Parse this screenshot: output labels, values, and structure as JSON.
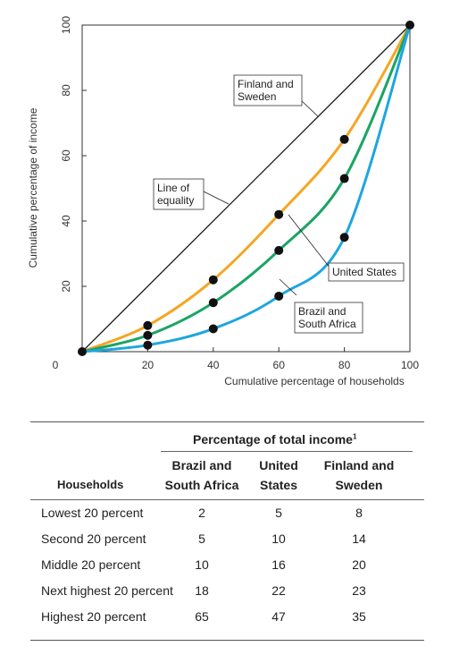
{
  "chart_data": {
    "type": "line",
    "xlabel": "Cumulative percentage of households",
    "ylabel": "Cumulative percentage of income",
    "xlim": [
      0,
      100
    ],
    "ylim": [
      0,
      100
    ],
    "xticks": [
      "0",
      "20",
      "40",
      "60",
      "80",
      "100"
    ],
    "yticks": [
      "20",
      "40",
      "60",
      "80",
      "100"
    ],
    "x": [
      0,
      20,
      40,
      60,
      80,
      100
    ],
    "series": [
      {
        "name": "Line of equality",
        "color": "#1a1a1a",
        "values": [
          0,
          20,
          40,
          60,
          80,
          100
        ]
      },
      {
        "name": "Finland and Sweden",
        "color": "#f5a623",
        "values": [
          0,
          8,
          22,
          42,
          65,
          100
        ]
      },
      {
        "name": "United States",
        "color": "#1aa564",
        "values": [
          0,
          5,
          15,
          31,
          53,
          100
        ]
      },
      {
        "name": "Brazil and South Africa",
        "color": "#1ea6e0",
        "values": [
          0,
          2,
          7,
          17,
          35,
          100
        ]
      }
    ],
    "annotations": {
      "equality": [
        "Line of",
        "equality"
      ],
      "finland": [
        "Finland and",
        "Sweden"
      ],
      "us": [
        "United States"
      ],
      "brazil": [
        "Brazil and",
        "South Africa"
      ]
    }
  },
  "table": {
    "group_header": "Percentage of total income",
    "footnote_mark": "1",
    "row_header": "Households",
    "columns": [
      [
        "Brazil and",
        "South Africa"
      ],
      [
        "United",
        "States"
      ],
      [
        "Finland and",
        "Sweden"
      ]
    ],
    "rows": [
      {
        "label": "Lowest 20 percent",
        "values": [
          "2",
          "5",
          "8"
        ]
      },
      {
        "label": "Second 20 percent",
        "values": [
          "5",
          "10",
          "14"
        ]
      },
      {
        "label": "Middle 20 percent",
        "values": [
          "10",
          "16",
          "20"
        ]
      },
      {
        "label": "Next highest 20 percent",
        "values": [
          "18",
          "22",
          "23"
        ]
      },
      {
        "label": "Highest 20 percent",
        "values": [
          "65",
          "47",
          "35"
        ]
      }
    ]
  }
}
